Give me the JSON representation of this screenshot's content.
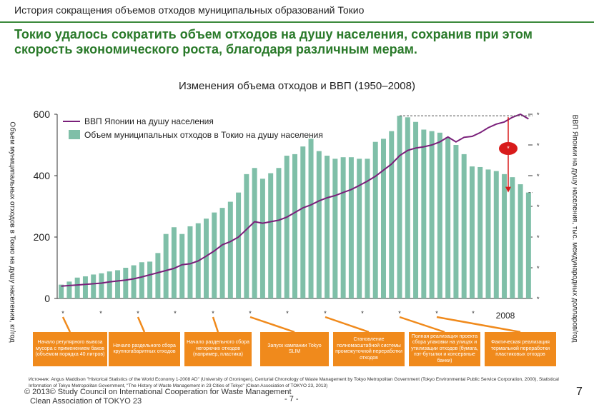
{
  "header": {
    "section_title": "История сокращения объемов отходов муниципальных образований Токио",
    "headline": "Токио удалось сократить объем отходов на душу населения, сохранив при этом скорость экономического роста, благодаря различным мерам."
  },
  "chart_data": {
    "type": "bar",
    "title": "Изменения объема отходов и ВВП (1950–2008)",
    "ylabel": "Объем муниципальных отходов в Токио на душу населения, кг/год",
    "y2label": "ВВП Японии на душу населения, тыс. международных долларов/год",
    "ylim": [
      0,
      600
    ],
    "yticks": [
      "0",
      "200",
      "400",
      "600"
    ],
    "y2ticks": [
      "*",
      "*",
      "*",
      "*",
      "*",
      "*",
      "*"
    ],
    "xticks": [
      "*",
      "*",
      "*",
      "*",
      "*",
      "*",
      "*",
      "*",
      "*",
      "*",
      "*",
      "*"
    ],
    "last_x_label": "2008",
    "x": [
      1950,
      1951,
      1952,
      1953,
      1954,
      1955,
      1956,
      1957,
      1958,
      1959,
      1960,
      1961,
      1962,
      1963,
      1964,
      1965,
      1966,
      1967,
      1968,
      1969,
      1970,
      1971,
      1972,
      1973,
      1974,
      1975,
      1976,
      1977,
      1978,
      1979,
      1980,
      1981,
      1982,
      1983,
      1984,
      1985,
      1986,
      1987,
      1988,
      1989,
      1990,
      1991,
      1992,
      1993,
      1994,
      1995,
      1996,
      1997,
      1998,
      1999,
      2000,
      2001,
      2002,
      2003,
      2004,
      2005,
      2006,
      2007,
      2008
    ],
    "series": [
      {
        "name": "Объем муниципальных отходов в Токио на душу населения",
        "color": "#7fbfa8",
        "values": [
          45,
          55,
          68,
          72,
          78,
          82,
          88,
          92,
          100,
          108,
          118,
          120,
          148,
          210,
          232,
          210,
          235,
          245,
          260,
          280,
          295,
          315,
          345,
          405,
          425,
          390,
          408,
          425,
          465,
          470,
          495,
          520,
          480,
          465,
          455,
          460,
          460,
          455,
          455,
          510,
          520,
          545,
          595,
          590,
          575,
          550,
          545,
          540,
          525,
          500,
          470,
          430,
          428,
          420,
          415,
          405,
          395,
          372,
          345
        ],
        "type": "bar"
      },
      {
        "name": "ВВП Японии на душу населения",
        "color": "#7a1f7a",
        "values": [
          40,
          42,
          44,
          46,
          48,
          50,
          54,
          57,
          60,
          64,
          70,
          77,
          84,
          91,
          98,
          110,
          113,
          122,
          138,
          155,
          175,
          185,
          200,
          225,
          250,
          245,
          250,
          255,
          265,
          280,
          295,
          305,
          318,
          328,
          335,
          345,
          355,
          368,
          382,
          398,
          418,
          438,
          465,
          482,
          490,
          494,
          500,
          510,
          526,
          510,
          525,
          528,
          540,
          556,
          568,
          575,
          590,
          600,
          585
        ],
        "type": "line"
      }
    ],
    "legend": "top-left"
  },
  "annotations": [
    {
      "label": "Начало регулярного вывоза мусора с применением баков (объемом порядка 40 литров)"
    },
    {
      "label": "Начало раздельного сбора крупногабаритных отходов"
    },
    {
      "label": "Начало раздельного сбора негорючих отходов (например, пластика)"
    },
    {
      "label": "Запуск кампании Tokyo SLIM"
    },
    {
      "label": "Становление полномасштабной системы промежуточной переработки отходов"
    },
    {
      "label": "Полная реализация проекта сбора упаковки на улицах и утилизации отходов (бумага, пэт-бутылки и консервные банки)"
    },
    {
      "label": "Фактическая реализация термальной переработки пластиковых отходов"
    }
  ],
  "sources": "Источник: Angus Maddison \"Historical Statistics of the World Economy 1-2008 AD\" (University of Groningen), Centurial Chronology of Waste Management by Tokyo Metropolitan Government (Tokyo Environmental Public Service Corporation, 2000), Statistical Information of Tokyo Metropolitan Government, \"The History of Waste Management in 23 Cities of Tokyo\" (Clean Association of TOKYO 23, 2013)",
  "footer": {
    "copyright": "© 2013© Study Council on International Cooperation for Waste Management",
    "org": "Clean Association of TOKYO 23",
    "page_small": "- 7 -",
    "page_big": "7"
  },
  "colors": {
    "headline": "#2a7a2a",
    "bars": "#7fbfa8",
    "gdp_line": "#7a1f7a",
    "annotation_box": "#f08a1c",
    "reduction_marker": "#d81b1b"
  }
}
